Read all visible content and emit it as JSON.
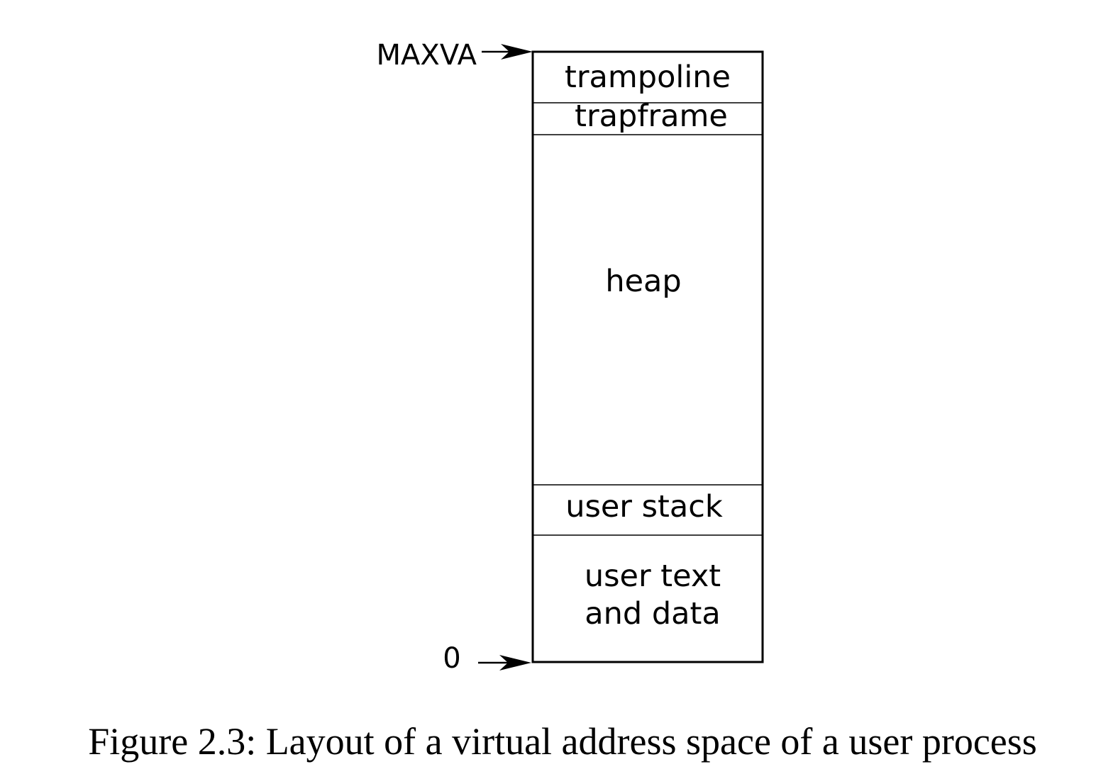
{
  "diagram": {
    "segments": [
      {
        "id": "trampoline",
        "lines": [
          "trampoline"
        ]
      },
      {
        "id": "trapframe",
        "lines": [
          "trapframe"
        ]
      },
      {
        "id": "heap",
        "lines": [
          "heap"
        ]
      },
      {
        "id": "user-stack",
        "lines": [
          "user stack"
        ]
      },
      {
        "id": "user-text-data",
        "lines": [
          "user text",
          "and data"
        ]
      }
    ],
    "top_address": "MAXVA",
    "bottom_address": "0"
  },
  "caption": "Figure 2.3: Layout of a virtual address space of a user process"
}
